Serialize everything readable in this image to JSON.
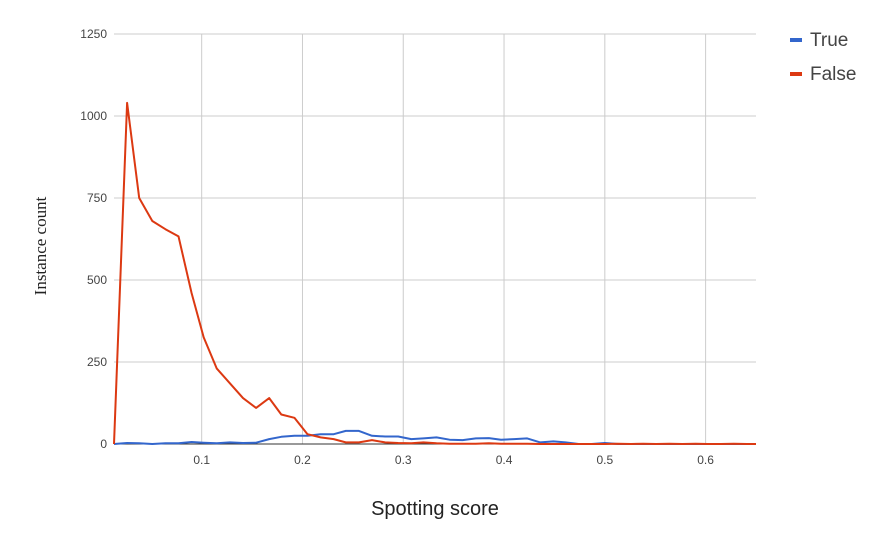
{
  "chart_data": {
    "type": "line",
    "title": "",
    "xlabel": "Spotting score",
    "ylabel": "Instance count",
    "xlim": [
      0.013,
      0.65
    ],
    "ylim": [
      0,
      1250
    ],
    "x_ticks": [
      0.1,
      0.2,
      0.3,
      0.4,
      0.5,
      0.6
    ],
    "x_tick_labels": [
      "0.1",
      "0.2",
      "0.3",
      "0.4",
      "0.5",
      "0.6"
    ],
    "y_ticks": [
      0,
      250,
      500,
      750,
      1000,
      1250
    ],
    "y_tick_labels": [
      "0",
      "250",
      "500",
      "750",
      "1000",
      "1250"
    ],
    "grid": true,
    "legend_position": "top-right",
    "x": [
      0.013,
      0.026,
      0.038,
      0.051,
      0.064,
      0.077,
      0.09,
      0.102,
      0.115,
      0.128,
      0.141,
      0.154,
      0.167,
      0.179,
      0.192,
      0.205,
      0.218,
      0.231,
      0.243,
      0.256,
      0.269,
      0.282,
      0.295,
      0.308,
      0.32,
      0.333,
      0.346,
      0.359,
      0.372,
      0.385,
      0.397,
      0.41,
      0.423,
      0.436,
      0.449,
      0.461,
      0.474,
      0.487,
      0.5,
      0.513,
      0.526,
      0.538,
      0.551,
      0.564,
      0.577,
      0.59,
      0.602,
      0.615,
      0.628,
      0.641,
      0.65
    ],
    "series": [
      {
        "name": "True",
        "color": "#3366cc",
        "values": [
          0,
          3,
          2,
          0,
          2,
          2,
          6,
          4,
          2,
          5,
          3,
          4,
          15,
          22,
          25,
          25,
          30,
          30,
          40,
          40,
          25,
          23,
          23,
          15,
          17,
          20,
          13,
          12,
          17,
          18,
          13,
          15,
          17,
          5,
          8,
          5,
          0,
          0,
          3,
          0,
          0,
          0,
          0,
          0,
          0,
          0,
          0,
          0,
          0,
          0,
          0
        ]
      },
      {
        "name": "False",
        "color": "#dc3912",
        "values": [
          0,
          1040,
          750,
          680,
          655,
          633,
          460,
          325,
          230,
          185,
          140,
          110,
          140,
          90,
          80,
          30,
          20,
          15,
          5,
          5,
          12,
          5,
          3,
          2,
          5,
          2,
          1,
          1,
          1,
          2,
          1,
          1,
          1,
          0,
          0,
          0,
          0,
          0,
          0,
          1,
          0,
          1,
          0,
          1,
          0,
          1,
          0,
          0,
          1,
          0,
          0
        ]
      }
    ]
  }
}
